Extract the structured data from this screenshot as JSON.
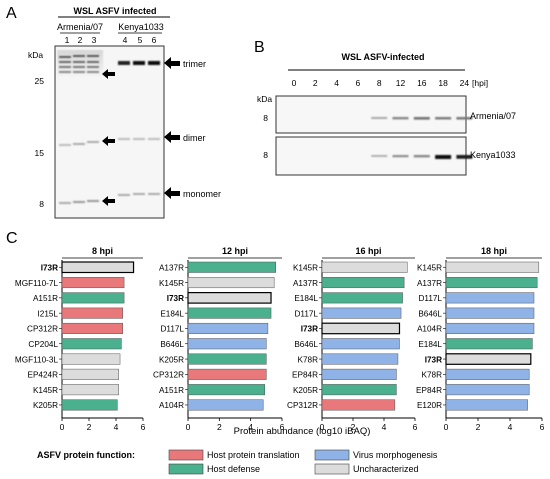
{
  "panel_a": {
    "letter": "A",
    "header": "WSL ASFV infected",
    "groups": [
      {
        "name": "Armenia/07",
        "lanes": [
          "1",
          "2",
          "3"
        ]
      },
      {
        "name": "Kenya1033",
        "lanes": [
          "4",
          "5",
          "6"
        ]
      }
    ],
    "kda_label": "kDa",
    "markers": [
      "25",
      "15",
      "8"
    ],
    "annotations": [
      "trimer",
      "dimer",
      "monomer"
    ]
  },
  "panel_b": {
    "letter": "B",
    "header": "WSL ASFV-infected",
    "timepoints": [
      "0",
      "2",
      "4",
      "6",
      "8",
      "12",
      "16",
      "18",
      "24"
    ],
    "hpi_label": "[hpi]",
    "kda_label": "kDa",
    "blots": [
      {
        "marker": "8",
        "label": "Armenia/07",
        "intensity": [
          0,
          0,
          0,
          0,
          0.18,
          0.35,
          0.45,
          0.4,
          0.42
        ]
      },
      {
        "marker": "8",
        "label": "Kenya1033",
        "intensity": [
          0,
          0,
          0,
          0,
          0.15,
          0.3,
          0.35,
          1.0,
          0.9
        ]
      }
    ]
  },
  "panel_c": {
    "letter": "C",
    "x_axis_label": "Protein abundance (log10 iBAQ)",
    "legend_title": "ASFV protein function:",
    "legend": [
      {
        "key": "translation",
        "label": "Host protein translation",
        "color": "#e8787a"
      },
      {
        "key": "morphogenesis",
        "label": "Virus morphogenesis",
        "color": "#8fb3e6"
      },
      {
        "key": "defense",
        "label": "Host defense",
        "color": "#4ab08d"
      },
      {
        "key": "uncharacterized",
        "label": "Uncharacterized",
        "color": "#dcdcdc"
      }
    ],
    "chart_data": [
      {
        "type": "bar",
        "title": "8 hpi",
        "xlim": [
          0,
          6
        ],
        "ticks": [
          "0",
          "2",
          "4",
          "6"
        ],
        "categories": [
          "I73R",
          "MGF110-7L",
          "A151R",
          "I215L",
          "CP312R",
          "CP204L",
          "MGF110-3L",
          "EP424R",
          "K145R",
          "K205R"
        ],
        "values": [
          5.3,
          4.6,
          4.6,
          4.5,
          4.5,
          4.4,
          4.3,
          4.2,
          4.2,
          4.1
        ],
        "functions": [
          "uncharacterized",
          "translation",
          "defense",
          "translation",
          "translation",
          "defense",
          "uncharacterized",
          "uncharacterized",
          "uncharacterized",
          "defense"
        ],
        "bold": [
          "I73R"
        ]
      },
      {
        "type": "bar",
        "title": "12 hpi",
        "xlim": [
          0,
          6
        ],
        "ticks": [
          "0",
          "2",
          "4",
          "6"
        ],
        "categories": [
          "A137R",
          "K145R",
          "I73R",
          "E184L",
          "D117L",
          "B646L",
          "K205R",
          "CP312R",
          "A151R",
          "A104R"
        ],
        "values": [
          5.6,
          5.5,
          5.3,
          5.3,
          5.1,
          5.0,
          5.0,
          5.0,
          4.9,
          4.8
        ],
        "functions": [
          "defense",
          "uncharacterized",
          "uncharacterized",
          "defense",
          "morphogenesis",
          "morphogenesis",
          "defense",
          "translation",
          "defense",
          "morphogenesis"
        ],
        "bold": [
          "I73R"
        ]
      },
      {
        "type": "bar",
        "title": "16 hpi",
        "xlim": [
          0,
          6
        ],
        "ticks": [
          "0",
          "2",
          "4",
          "6"
        ],
        "categories": [
          "K145R",
          "A137R",
          "E184L",
          "D117L",
          "I73R",
          "B646L",
          "K78R",
          "EP84R",
          "K205R",
          "CP312R"
        ],
        "values": [
          5.5,
          5.3,
          5.2,
          5.1,
          5.0,
          5.0,
          4.9,
          4.8,
          4.8,
          4.7
        ],
        "functions": [
          "uncharacterized",
          "defense",
          "defense",
          "morphogenesis",
          "uncharacterized",
          "morphogenesis",
          "morphogenesis",
          "morphogenesis",
          "defense",
          "translation"
        ],
        "bold": [
          "I73R"
        ]
      },
      {
        "type": "bar",
        "title": "18 hpi",
        "xlim": [
          0,
          6
        ],
        "ticks": [
          "0",
          "2",
          "4",
          "6"
        ],
        "categories": [
          "K145R",
          "A137R",
          "D117L",
          "B646L",
          "A104R",
          "E184L",
          "I73R",
          "K78R",
          "EP84R",
          "E120R"
        ],
        "values": [
          5.8,
          5.7,
          5.5,
          5.5,
          5.5,
          5.4,
          5.3,
          5.2,
          5.2,
          5.1
        ],
        "functions": [
          "uncharacterized",
          "defense",
          "morphogenesis",
          "morphogenesis",
          "morphogenesis",
          "defense",
          "uncharacterized",
          "morphogenesis",
          "morphogenesis",
          "morphogenesis"
        ],
        "bold": [
          "I73R"
        ]
      }
    ]
  }
}
